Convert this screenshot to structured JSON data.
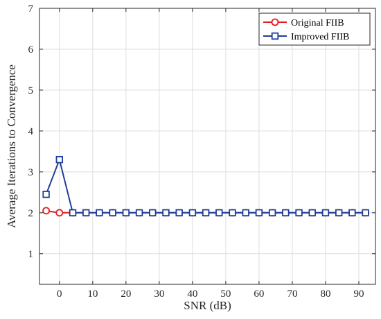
{
  "chart_data": {
    "type": "line",
    "xlabel": "SNR (dB)",
    "ylabel": "Average Iterations to Convergence",
    "xlim": [
      -6,
      95
    ],
    "ylim": [
      0.25,
      7
    ],
    "xticks": [
      0,
      10,
      20,
      30,
      40,
      50,
      60,
      70,
      80,
      90
    ],
    "yticks": [
      1,
      2,
      3,
      4,
      5,
      6,
      7
    ],
    "grid": true,
    "legend_position": "top-right",
    "x": [
      -4,
      0,
      4,
      8,
      12,
      16,
      20,
      24,
      28,
      32,
      36,
      40,
      44,
      48,
      52,
      56,
      60,
      64,
      68,
      72,
      76,
      80,
      84,
      88,
      92
    ],
    "series": [
      {
        "name": "Original FIIB",
        "color": "#e8191c",
        "marker": "circle",
        "values": [
          2.05,
          2.0,
          2.0,
          2.0,
          2.0,
          2.0,
          2.0,
          2.0,
          2.0,
          2.0,
          2.0,
          2.0,
          2.0,
          2.0,
          2.0,
          2.0,
          2.0,
          2.0,
          2.0,
          2.0,
          2.0,
          2.0,
          2.0,
          2.0,
          2.0
        ]
      },
      {
        "name": "Improved FIIB",
        "color": "#1f3d99",
        "marker": "square",
        "values": [
          2.45,
          3.3,
          2.0,
          2.0,
          2.0,
          2.0,
          2.0,
          2.0,
          2.0,
          2.0,
          2.0,
          2.0,
          2.0,
          2.0,
          2.0,
          2.0,
          2.0,
          2.0,
          2.0,
          2.0,
          2.0,
          2.0,
          2.0,
          2.0,
          2.0
        ]
      }
    ]
  }
}
